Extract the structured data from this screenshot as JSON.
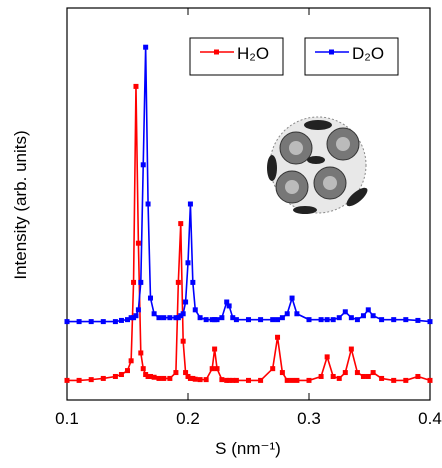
{
  "chart_data": {
    "type": "line",
    "xlabel": "S (nm⁻¹)",
    "ylabel": "Intensity (arb. units)",
    "xlim": [
      0.1,
      0.4
    ],
    "xticks": [
      0.1,
      0.2,
      0.3,
      0.4
    ],
    "ylim": [
      0,
      100
    ],
    "legend": "top-right",
    "x": [
      0.1,
      0.11,
      0.12,
      0.13,
      0.14,
      0.145,
      0.15,
      0.153,
      0.155,
      0.157,
      0.159,
      0.161,
      0.163,
      0.165,
      0.167,
      0.169,
      0.172,
      0.176,
      0.18,
      0.185,
      0.19,
      0.192,
      0.194,
      0.196,
      0.198,
      0.2,
      0.202,
      0.204,
      0.206,
      0.21,
      0.215,
      0.22,
      0.222,
      0.224,
      0.228,
      0.232,
      0.234,
      0.237,
      0.24,
      0.25,
      0.26,
      0.27,
      0.274,
      0.278,
      0.282,
      0.286,
      0.29,
      0.3,
      0.31,
      0.315,
      0.32,
      0.325,
      0.33,
      0.335,
      0.34,
      0.345,
      0.349,
      0.353,
      0.36,
      0.37,
      0.38,
      0.39,
      0.4
    ],
    "series": [
      {
        "name": "H₂O",
        "color": "#ff0000",
        "values": [
          5,
          5,
          5.2,
          5.5,
          6,
          6.5,
          7.5,
          10,
          30,
          80,
          40,
          12,
          8,
          6.5,
          6,
          6,
          5.8,
          5.5,
          5.5,
          5.5,
          7,
          30,
          45,
          15,
          7,
          6,
          5.5,
          5.5,
          5.3,
          5.2,
          5.2,
          8,
          13,
          8,
          5.2,
          5,
          5,
          5,
          5,
          5,
          5,
          8,
          16,
          7,
          5,
          5,
          5,
          5,
          6,
          11,
          6,
          5.5,
          7,
          13,
          7,
          6,
          6,
          7,
          5.5,
          5,
          5,
          6,
          5
        ]
      },
      {
        "name": "D₂O",
        "color": "#0000ff",
        "values": [
          20,
          20,
          20,
          20,
          20,
          20.3,
          20.5,
          21,
          21,
          21.5,
          23,
          30,
          60,
          90,
          50,
          26,
          22,
          21,
          21,
          21,
          21,
          21,
          21.5,
          22,
          25,
          35,
          50,
          30,
          23,
          21,
          20.5,
          20.5,
          20.5,
          20.5,
          21,
          25,
          24,
          21,
          20.5,
          20.5,
          20.5,
          20.5,
          20.5,
          21,
          22,
          26,
          22,
          20.5,
          20.5,
          20.5,
          20.5,
          21,
          22.5,
          21,
          20.5,
          21.5,
          23,
          21.5,
          20.5,
          20.5,
          20.5,
          20.3,
          20
        ]
      }
    ]
  }
}
